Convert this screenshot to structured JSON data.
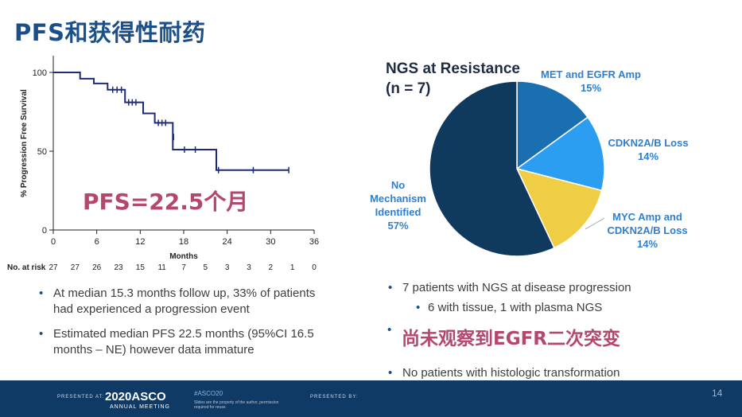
{
  "slide": {
    "title": "PFS和获得性耐药",
    "page_number": "14"
  },
  "km_chart": {
    "ylabel": "% Progression Free Survival",
    "xlabel": "Months",
    "y_ticks": [
      "100",
      "50",
      "0"
    ],
    "x_ticks": [
      "0",
      "6",
      "12",
      "18",
      "24",
      "30",
      "36"
    ],
    "pfs_label": "PFS=22.5个月",
    "line_color": "#1e2a7a",
    "risk_label": "No. at risk",
    "risk_values": [
      "27",
      "27",
      "26",
      "23",
      "15",
      "11",
      "7",
      "5",
      "3",
      "3",
      "2",
      "1",
      "0"
    ]
  },
  "chart_data": {
    "type": "line",
    "title": "",
    "xlabel": "Months",
    "ylabel": "% Progression Free Survival",
    "xlim": [
      0,
      36
    ],
    "ylim": [
      0,
      100
    ],
    "series": [
      {
        "name": "",
        "x": [
          0,
          3.7,
          3.7,
          5.6,
          5.6,
          7.5,
          7.5,
          9.9,
          9.9,
          12.4,
          12.4,
          14.0,
          14.0,
          16.5,
          16.5,
          22.5,
          22.5,
          32.5
        ],
        "y": [
          100,
          100,
          96,
          96,
          93,
          93,
          89,
          89,
          81,
          81,
          74,
          74,
          68,
          68,
          51,
          51,
          38,
          38
        ]
      }
    ],
    "censor_x": [
      8.2,
      8.8,
      9.4,
      10.4,
      10.9,
      11.4,
      14.5,
      15.0,
      15.5,
      16.6,
      18.1,
      19.6,
      22.8,
      27.6,
      32.5
    ],
    "censor_y": [
      89,
      89,
      89,
      81,
      81,
      81,
      68,
      68,
      68,
      59,
      51,
      51,
      38,
      38,
      38
    ]
  },
  "pie": {
    "heading_line1": "NGS at Resistance",
    "heading_line2": "(n = 7)",
    "slices": [
      {
        "label": "MET and EGFR Amp",
        "pct": "15%",
        "value": 15,
        "color": "#1a6fb0"
      },
      {
        "label": "CDKN2A/B Loss",
        "pct": "14%",
        "value": 14,
        "color": "#2c9ef1"
      },
      {
        "label": "MYC Amp and CDKN2A/B Loss",
        "pct": "14%",
        "value": 14,
        "color": "#efcd45"
      },
      {
        "label": "No Mechanism Identified",
        "pct": "57%",
        "value": 57,
        "color": "#0f3a5e"
      }
    ],
    "labels": {
      "met_line1": "MET and EGFR Amp",
      "met_pct": "15%",
      "cdkn_line1": "CDKN2A/B Loss",
      "cdkn_pct": "14%",
      "myc_line1": "MYC Amp and",
      "myc_line2": "CDKN2A/B Loss",
      "myc_pct": "14%",
      "none_line1": "No",
      "none_line2": "Mechanism",
      "none_line3": "Identified",
      "none_pct": "57%"
    }
  },
  "left_bullets": [
    "At median 15.3 months follow up, 33% of patients had experienced a progression event",
    "Estimated median PFS 22.5 months (95%CI 16.5 months – NE) however data immature"
  ],
  "right_bullets": {
    "b1": "7 patients with NGS at disease progression",
    "b1_sub": "6 with tissue, 1 with plasma NGS",
    "b2_cn": "尚未观察到EGFR二次突变",
    "b3": "No patients with histologic transformation"
  },
  "footer": {
    "presented_at": "PRESENTED AT:",
    "year_brand": "2020ASCO",
    "annual_meeting": "ANNUAL MEETING",
    "hashtag": "#ASCO20",
    "note": "Slides are the property of the author, permission required for reuse.",
    "presented_by": "PRESENTED BY:"
  }
}
